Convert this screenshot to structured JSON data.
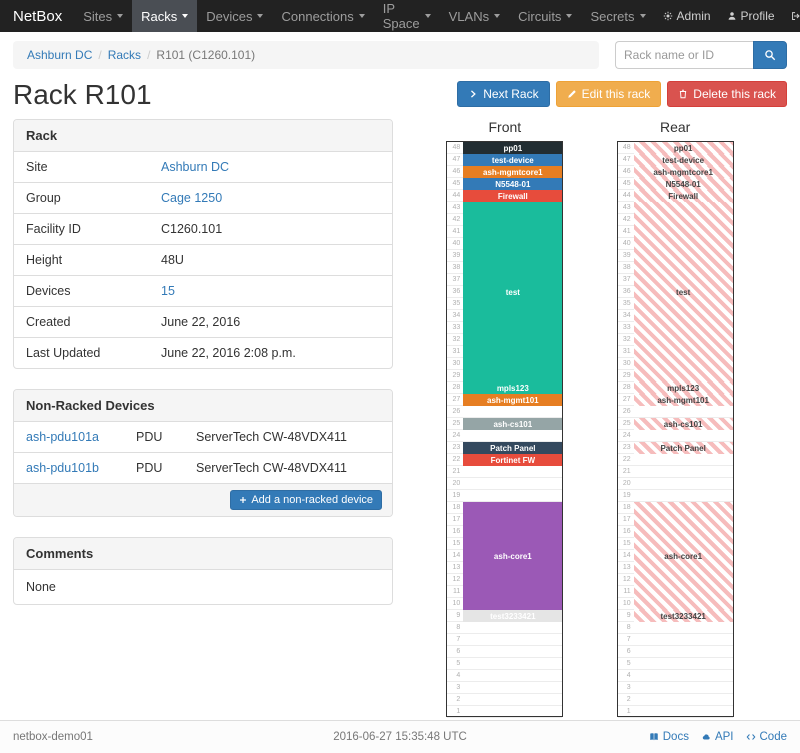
{
  "navbar": {
    "brand": "NetBox",
    "items": [
      {
        "label": "Sites",
        "active": false
      },
      {
        "label": "Racks",
        "active": true
      },
      {
        "label": "Devices",
        "active": false
      },
      {
        "label": "Connections",
        "active": false
      },
      {
        "label": "IP Space",
        "active": false
      },
      {
        "label": "VLANs",
        "active": false
      },
      {
        "label": "Circuits",
        "active": false
      },
      {
        "label": "Secrets",
        "active": false
      }
    ],
    "right_items": [
      {
        "label": "Admin",
        "icon": "gear-icon"
      },
      {
        "label": "Profile",
        "icon": "user-icon"
      },
      {
        "label": "Log out",
        "icon": "logout-icon"
      }
    ]
  },
  "breadcrumb": {
    "items": [
      {
        "label": "Ashburn DC",
        "link": true
      },
      {
        "label": "Racks",
        "link": true
      },
      {
        "label": "R101 (C1260.101)",
        "link": false
      }
    ]
  },
  "search": {
    "placeholder": "Rack name or ID"
  },
  "page": {
    "title": "Rack R101"
  },
  "actions": {
    "next_rack": "Next Rack",
    "edit_rack": "Edit this rack",
    "delete_rack": "Delete this rack"
  },
  "rack_panel": {
    "title": "Rack",
    "rows": [
      {
        "label": "Site",
        "value": "Ashburn DC",
        "link": true
      },
      {
        "label": "Group",
        "value": "Cage 1250",
        "link": true
      },
      {
        "label": "Facility ID",
        "value": "C1260.101",
        "link": false
      },
      {
        "label": "Height",
        "value": "48U",
        "link": false
      },
      {
        "label": "Devices",
        "value": "15",
        "link": true
      },
      {
        "label": "Created",
        "value": "June 22, 2016",
        "link": false
      },
      {
        "label": "Last Updated",
        "value": "June 22, 2016 2:08 p.m.",
        "link": false
      }
    ]
  },
  "non_racked_panel": {
    "title": "Non-Racked Devices",
    "devices": [
      {
        "name": "ash-pdu101a",
        "role": "PDU",
        "type": "ServerTech CW-48VDX411"
      },
      {
        "name": "ash-pdu101b",
        "role": "PDU",
        "type": "ServerTech CW-48VDX411"
      }
    ],
    "add_button": "Add a non-racked device"
  },
  "comments_panel": {
    "title": "Comments",
    "body": "None"
  },
  "elevations": {
    "front_title": "Front",
    "rear_title": "Rear",
    "units_total": 48,
    "devices": [
      {
        "name": "pp01",
        "unit": 48,
        "height": 1,
        "color": "#222d32",
        "full_depth": true
      },
      {
        "name": "test-device",
        "unit": 47,
        "height": 1,
        "color": "#337ab7",
        "full_depth": true
      },
      {
        "name": "ash-mgmtcore1",
        "unit": 46,
        "height": 1,
        "color": "#e67e22",
        "full_depth": true
      },
      {
        "name": "N5548-01",
        "unit": 45,
        "height": 1,
        "color": "#337ab7",
        "full_depth": true
      },
      {
        "name": "Firewall",
        "unit": 44,
        "height": 1,
        "color": "#e74c3c",
        "full_depth": true
      },
      {
        "name": "test",
        "unit": 43,
        "height": 15,
        "color": "#1abc9c",
        "full_depth": true
      },
      {
        "name": "mpls123",
        "unit": 28,
        "height": 1,
        "color": "#1abc9c",
        "full_depth": true
      },
      {
        "name": "ash-mgmt101",
        "unit": 27,
        "height": 1,
        "color": "#e67e22",
        "full_depth": true
      },
      {
        "name": "ash-cs101",
        "unit": 25,
        "height": 1,
        "color": "#95a5a6",
        "full_depth": true
      },
      {
        "name": "Patch Panel",
        "unit": 23,
        "height": 1,
        "color": "#34495e",
        "full_depth": true
      },
      {
        "name": "Fortinet FW",
        "unit": 22,
        "height": 1,
        "color": "#e74c3c",
        "full_depth": false
      },
      {
        "name": "ash-core1",
        "unit": 18,
        "height": 9,
        "color": "#9b59b6",
        "full_depth": true
      },
      {
        "name": "test3233421",
        "unit": 9,
        "height": 1,
        "color": "#e5e5e5",
        "text_color": "#ffffff",
        "full_depth": true
      }
    ]
  },
  "footer": {
    "hostname": "netbox-demo01",
    "timestamp": "2016-06-27 15:35:48 UTC",
    "links": [
      {
        "label": "Docs",
        "icon": "book-icon"
      },
      {
        "label": "API",
        "icon": "cloud-icon"
      },
      {
        "label": "Code",
        "icon": "code-icon"
      }
    ]
  }
}
